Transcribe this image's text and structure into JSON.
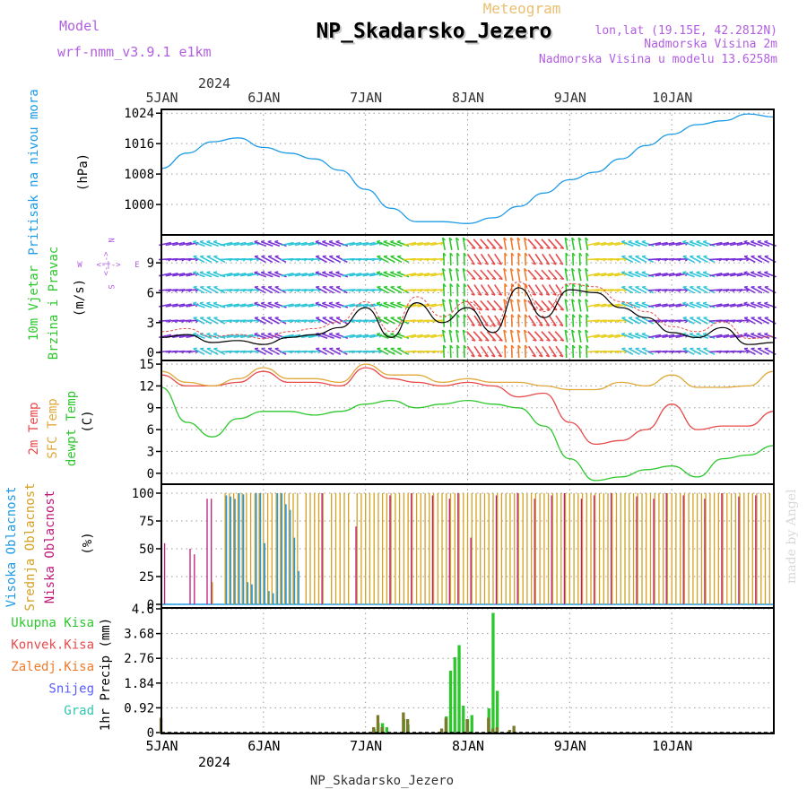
{
  "header": {
    "title": "NP_Skadarsko_Jezero",
    "meteogram_label": "Meteogram",
    "model_label": "Model",
    "model_name": "wrf-nmm_v3.9.1  e1km",
    "location": "lon,lat (19.15E, 42.2812N)",
    "elevation": "Nadmorska Visina 2m",
    "model_elevation": "Nadmorska Visina u modelu 13.6258m",
    "credit": "made by Angel",
    "footer_title": "NP_Skadarsko_Jezero"
  },
  "time_axis": {
    "year": "2024",
    "days": [
      "5JAN",
      "6JAN",
      "7JAN",
      "8JAN",
      "9JAN",
      "10JAN"
    ],
    "hours_shown": [
      12,
      156
    ]
  },
  "colors": {
    "pressure": "#1e9be6",
    "temp2m": "#e84a4a",
    "sfc_temp": "#e0a83a",
    "dewpoint": "#2dc72d",
    "high_cloud": "#1e9be6",
    "mid_cloud": "#d4a020",
    "low_cloud": "#c01a7a",
    "total_precip": "#2dc72d",
    "conv_precip": "#e84a4a",
    "frozen_precip": "#f07a2a",
    "snow": "#5a5aff",
    "grad": "#2dc7b0",
    "wind_label": "#b25ee0",
    "header_purple": "#b25ee0",
    "meteogram_gold": "#e8c070"
  },
  "chart_data": [
    {
      "type": "line",
      "name": "pressure",
      "ylabel": "Pritisak na nivou mora",
      "units": "(hPa)",
      "yticks": [
        1000,
        1008,
        1016,
        1024
      ],
      "ylim": [
        992,
        1025
      ],
      "x": [
        12,
        18,
        24,
        30,
        36,
        42,
        48,
        54,
        60,
        66,
        72,
        78,
        84,
        90,
        96,
        102,
        108,
        114,
        120,
        126,
        132,
        138,
        144,
        150,
        156
      ],
      "series": [
        {
          "values": [
            1009.5,
            1013.5,
            1016.5,
            1017.5,
            1015,
            1013.5,
            1012,
            1009,
            1004,
            999,
            995.5,
            995.5,
            995,
            996.5,
            999.5,
            1003,
            1006.5,
            1008.5,
            1012,
            1015.5,
            1018.5,
            1021,
            1022,
            1023.8,
            1023
          ]
        }
      ]
    },
    {
      "type": "line",
      "name": "wind",
      "ylabel": "10m Vjetar",
      "ylabel2": "Brzina i Pravac",
      "units": "(m/s)",
      "compass": {
        "north": "N",
        "south": "S",
        "west": "W",
        "east": "E",
        "arrows": "<-|->"
      },
      "yticks": [
        0,
        3,
        6,
        9
      ],
      "ylim": [
        -0.8,
        11.8
      ],
      "x": [
        12,
        18,
        24,
        30,
        36,
        42,
        48,
        54,
        60,
        66,
        72,
        78,
        84,
        90,
        96,
        102,
        108,
        114,
        120,
        126,
        132,
        138,
        144,
        150,
        156
      ],
      "series": [
        {
          "values": [
            1.5,
            1.8,
            1.0,
            1.2,
            0.8,
            1.5,
            1.8,
            2.5,
            4.5,
            1.5,
            5.0,
            3.0,
            4.5,
            2.0,
            6.5,
            3.5,
            6.3,
            6.0,
            4.5,
            3.5,
            2.0,
            1.5,
            2.5,
            0.8,
            1.0
          ]
        }
      ]
    },
    {
      "type": "line",
      "name": "temperature",
      "ylabels": [
        "2m Temp",
        "SFC Temp",
        "dewpt Temp"
      ],
      "units": "(C)",
      "yticks": [
        0,
        3,
        6,
        9,
        12,
        15
      ],
      "ylim": [
        -1.5,
        15.5
      ],
      "x": [
        12,
        18,
        24,
        30,
        36,
        42,
        48,
        54,
        60,
        66,
        72,
        78,
        84,
        90,
        96,
        102,
        108,
        114,
        120,
        126,
        132,
        138,
        144,
        150,
        156
      ],
      "series": [
        {
          "name": "2m Temp",
          "values": [
            13.5,
            12.0,
            12.0,
            12.5,
            14.0,
            12.5,
            12.5,
            12.0,
            14.5,
            13.0,
            12.5,
            12.0,
            12.5,
            12.0,
            10.5,
            11.0,
            7.0,
            4.0,
            4.5,
            6.0,
            9.5,
            6.0,
            6.5,
            6.5,
            8.5
          ]
        },
        {
          "name": "SFC Temp",
          "values": [
            14.0,
            12.5,
            12.0,
            13.0,
            14.5,
            13.0,
            13.0,
            12.5,
            15.0,
            13.5,
            13.5,
            12.5,
            13.0,
            12.5,
            12.5,
            12.0,
            11.5,
            11.5,
            12.5,
            12.0,
            13.5,
            11.8,
            11.8,
            12.0,
            14.0
          ]
        },
        {
          "name": "dewpt Temp",
          "values": [
            11.8,
            7.0,
            5.0,
            7.5,
            8.5,
            8.5,
            8.0,
            8.5,
            9.5,
            10.0,
            9.0,
            9.5,
            10.0,
            9.5,
            9.0,
            6.5,
            2.0,
            -1.0,
            -0.5,
            0.5,
            1.0,
            -0.5,
            2.0,
            2.5,
            3.8
          ]
        }
      ]
    },
    {
      "type": "bar",
      "name": "clouds",
      "ylabels": [
        "Visoka Oblacnost",
        "Srednja Oblacnost",
        "Niska Oblacnost"
      ],
      "units": "(%)",
      "yticks": [
        0,
        25,
        50,
        75,
        100
      ],
      "ylim": [
        0,
        100
      ],
      "series": [
        {
          "name": "Visoka Oblacnost",
          "x": [
            27,
            28,
            29,
            30,
            31,
            32,
            33,
            34,
            35,
            36,
            37,
            38,
            39,
            40,
            41,
            42,
            43,
            44
          ],
          "values": [
            98,
            97,
            95,
            100,
            99,
            20,
            18,
            100,
            100,
            55,
            12,
            10,
            100,
            100,
            90,
            85,
            60,
            30
          ]
        },
        {
          "name": "Srednja Oblacnost",
          "x": [
            12,
            24,
            27,
            28,
            29,
            30,
            31,
            32,
            33,
            34,
            35,
            36,
            37,
            38,
            39,
            40,
            41,
            42,
            43,
            44,
            46,
            47,
            48,
            49,
            50,
            52,
            53,
            54,
            55,
            56,
            58,
            59,
            60,
            61,
            62,
            63,
            64,
            65,
            66,
            67,
            68,
            69,
            70,
            71,
            72,
            73,
            74,
            75,
            76,
            77,
            78,
            79,
            80,
            81,
            82,
            83,
            84,
            85,
            86,
            87,
            88,
            89,
            90,
            91,
            92,
            93,
            94,
            95,
            96,
            97,
            98,
            99,
            100,
            101,
            102,
            103,
            104,
            105,
            106,
            107,
            108,
            109,
            110,
            111,
            112,
            113,
            114,
            115,
            116,
            117,
            118,
            119,
            120,
            121,
            122,
            123,
            124,
            125,
            126,
            127,
            128,
            129,
            130,
            131,
            132,
            133,
            134,
            135,
            136,
            137,
            138,
            139,
            140,
            141,
            142,
            143,
            144,
            145,
            146,
            147,
            148,
            149,
            150,
            151,
            152,
            153,
            154,
            155,
            156
          ],
          "values": [
            82,
            20,
            100,
            100,
            100,
            100,
            100,
            100,
            100,
            100,
            100,
            100,
            100,
            100,
            100,
            100,
            100,
            100,
            100,
            100,
            100,
            100,
            100,
            100,
            100,
            100,
            100,
            100,
            100,
            100,
            100,
            100,
            100,
            100,
            100,
            100,
            100,
            100,
            100,
            100,
            100,
            100,
            100,
            100,
            100,
            100,
            100,
            100,
            100,
            100,
            100,
            100,
            100,
            100,
            100,
            100,
            100,
            100,
            100,
            100,
            100,
            100,
            100,
            100,
            100,
            100,
            100,
            100,
            100,
            100,
            100,
            100,
            100,
            100,
            100,
            100,
            100,
            100,
            100,
            100,
            100,
            100,
            100,
            100,
            100,
            100,
            100,
            100,
            100,
            100,
            100,
            100,
            100,
            100,
            100,
            100,
            100,
            100,
            100,
            100,
            100,
            100,
            100,
            100,
            100,
            100,
            100,
            100,
            100,
            100,
            100,
            100,
            100,
            100,
            100,
            100,
            100,
            100,
            100,
            100,
            100,
            100,
            100,
            100,
            100,
            100,
            100,
            100,
            100
          ]
        },
        {
          "name": "Niska Oblacnost",
          "x": [
            13,
            19,
            20,
            23,
            24,
            50,
            58,
            66,
            71,
            76,
            80,
            82,
            85,
            91,
            96,
            100,
            104,
            107,
            111,
            114,
            118,
            124,
            128,
            131,
            135,
            140,
            144,
            148,
            152
          ],
          "values": [
            55,
            50,
            45,
            95,
            95,
            100,
            70,
            98,
            100,
            98,
            95,
            100,
            60,
            98,
            100,
            95,
            98,
            100,
            95,
            98,
            100,
            97,
            95,
            100,
            98,
            95,
            100,
            97,
            98
          ]
        }
      ]
    },
    {
      "type": "bar",
      "name": "precipitation",
      "ylabel": "1hr Precip (mm)",
      "yticks": [
        0,
        0.92,
        1.84,
        2.76,
        3.68,
        4.6
      ],
      "ytick_labels": [
        "0",
        "0.92",
        "1.84",
        "2.76",
        "3.68",
        "4.6"
      ],
      "ylim": [
        0,
        4.6
      ],
      "legend": [
        "Ukupna Kisa",
        "Konvek.Kisa",
        "Zaledj.Kisa",
        "Snijeg",
        "Grad"
      ],
      "series": [
        {
          "name": "Ukupna Kisa",
          "x": [
            62,
            63,
            64,
            65,
            69,
            70,
            79,
            80,
            81,
            82,
            83,
            84,
            85,
            89,
            90,
            91
          ],
          "values": [
            0.15,
            0.35,
            0.35,
            0.2,
            0.5,
            0.3,
            0.6,
            2.3,
            2.8,
            3.25,
            1.0,
            0.5,
            0.65,
            0.9,
            4.45,
            1.55
          ]
        },
        {
          "name": "Konvek.Kisa",
          "x": [
            12,
            62,
            63,
            64,
            69,
            70,
            78,
            79,
            84,
            89,
            90,
            91,
            94,
            95
          ],
          "values": [
            0.55,
            0.2,
            0.65,
            0.2,
            0.75,
            0.5,
            0.15,
            0.55,
            0.5,
            0.55,
            0.15,
            0.2,
            0.1,
            0.25
          ]
        }
      ]
    }
  ]
}
